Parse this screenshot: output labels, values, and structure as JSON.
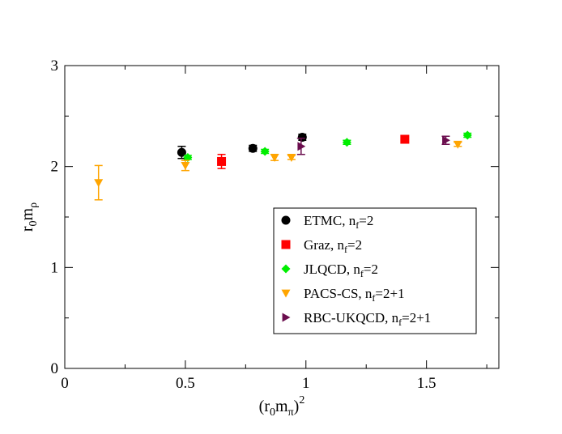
{
  "chart_data": {
    "type": "scatter",
    "title": "",
    "xlabel": {
      "pre": "(r",
      "sub1": "0",
      "mid": "m",
      "sub2": "π",
      "post": ")",
      "sup": "2"
    },
    "ylabel": {
      "pre": "r",
      "sub1": "0",
      "mid": "m",
      "sub2": "ρ"
    },
    "xlim": [
      0,
      1.8
    ],
    "ylim": [
      0,
      3
    ],
    "x_ticks": [
      {
        "value": 0,
        "label": "0"
      },
      {
        "value": 0.5,
        "label": "0.5"
      },
      {
        "value": 1,
        "label": "1"
      },
      {
        "value": 1.5,
        "label": "1.5"
      }
    ],
    "y_ticks": [
      {
        "value": 0,
        "label": "0"
      },
      {
        "value": 1,
        "label": "1"
      },
      {
        "value": 2,
        "label": "2"
      },
      {
        "value": 3,
        "label": "3"
      }
    ],
    "grid": false,
    "legend_position": "center-right",
    "series": [
      {
        "name": "ETMC, n",
        "name_sub": "f",
        "name_rest": "=2",
        "marker": "circle",
        "color": "#000000",
        "points": [
          {
            "x": 0.485,
            "y": 2.14,
            "err": 0.06
          },
          {
            "x": 0.78,
            "y": 2.18,
            "err": 0.03
          },
          {
            "x": 0.985,
            "y": 2.29,
            "err": 0.03
          }
        ]
      },
      {
        "name": "Graz, n",
        "name_sub": "f",
        "name_rest": "=2",
        "marker": "square",
        "color": "#ff0000",
        "points": [
          {
            "x": 0.65,
            "y": 2.05,
            "err": 0.07
          },
          {
            "x": 1.41,
            "y": 2.27,
            "err": 0.02
          }
        ]
      },
      {
        "name": "JLQCD, n",
        "name_sub": "f",
        "name_rest": "=2",
        "marker": "diamond",
        "color": "#00ee00",
        "points": [
          {
            "x": 0.51,
            "y": 2.09,
            "err": 0.02
          },
          {
            "x": 0.83,
            "y": 2.15,
            "err": 0.02
          },
          {
            "x": 1.17,
            "y": 2.24,
            "err": 0.02
          },
          {
            "x": 1.67,
            "y": 2.31,
            "err": 0.02
          }
        ]
      },
      {
        "name": "PACS-CS, n",
        "name_sub": "f",
        "name_rest": "=2+1",
        "marker": "triangle-down",
        "color": "#ffa500",
        "points": [
          {
            "x": 0.14,
            "y": 1.84,
            "err": 0.17
          },
          {
            "x": 0.5,
            "y": 2.01,
            "err": 0.05
          },
          {
            "x": 0.87,
            "y": 2.09,
            "err": 0.03
          },
          {
            "x": 0.94,
            "y": 2.09,
            "err": 0.02
          },
          {
            "x": 1.63,
            "y": 2.22,
            "err": 0.02
          }
        ]
      },
      {
        "name": "RBC-UKQCD, n",
        "name_sub": "f",
        "name_rest": "=2+1",
        "marker": "triangle-right",
        "color": "#6b0e4e",
        "points": [
          {
            "x": 0.98,
            "y": 2.2,
            "err": 0.08
          },
          {
            "x": 1.58,
            "y": 2.26,
            "err": 0.04
          }
        ]
      }
    ]
  }
}
